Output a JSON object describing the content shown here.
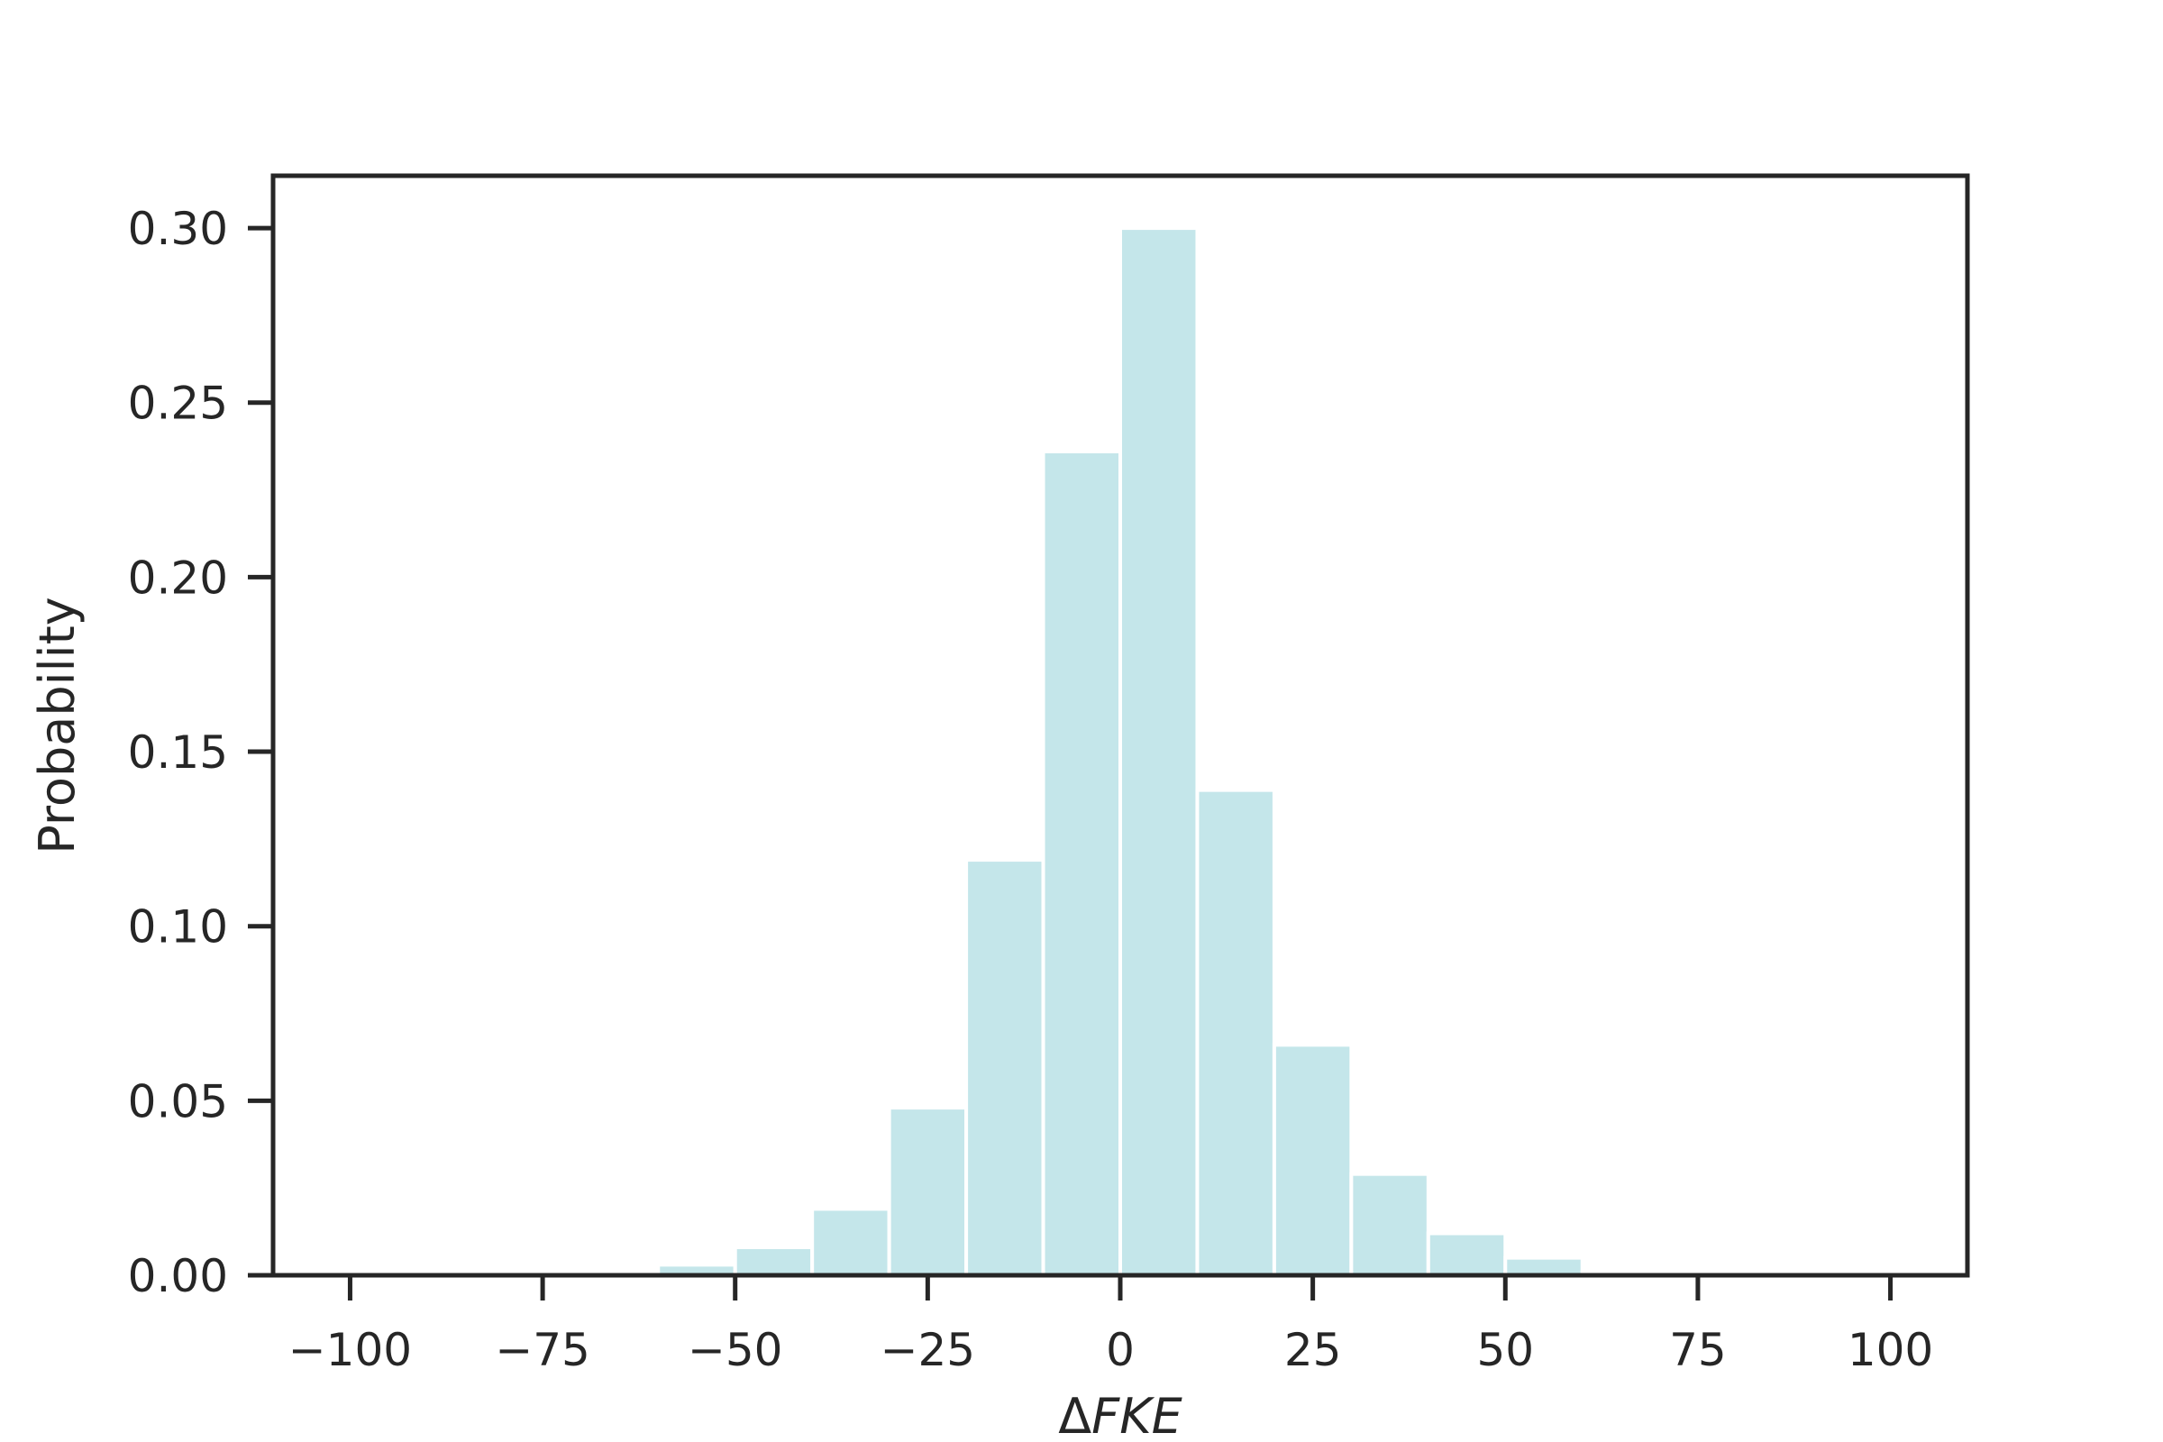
{
  "chart_data": {
    "type": "bar",
    "title": "",
    "xlabel_prefix": "Δ",
    "xlabel_var": "FKE",
    "ylabel": "Probability",
    "xlim": [
      -110,
      110
    ],
    "ylim": [
      0,
      0.315
    ],
    "xticks": [
      -100,
      -75,
      -50,
      -25,
      0,
      25,
      50,
      75,
      100
    ],
    "xtick_labels": [
      "−100",
      "−75",
      "−50",
      "−25",
      "0",
      "25",
      "50",
      "75",
      "100"
    ],
    "yticks": [
      0,
      0.05,
      0.1,
      0.15,
      0.2,
      0.25,
      0.3
    ],
    "ytick_labels": [
      "0.00",
      "0.05",
      "0.10",
      "0.15",
      "0.20",
      "0.25",
      "0.30"
    ],
    "bin_width": 10,
    "bins": [
      {
        "x0": -60,
        "x1": -50,
        "value": 0.003
      },
      {
        "x0": -50,
        "x1": -40,
        "value": 0.008
      },
      {
        "x0": -40,
        "x1": -30,
        "value": 0.019
      },
      {
        "x0": -30,
        "x1": -20,
        "value": 0.048
      },
      {
        "x0": -20,
        "x1": -10,
        "value": 0.119
      },
      {
        "x0": -10,
        "x1": 0,
        "value": 0.236
      },
      {
        "x0": 0,
        "x1": 10,
        "value": 0.3
      },
      {
        "x0": 10,
        "x1": 20,
        "value": 0.139
      },
      {
        "x0": 20,
        "x1": 30,
        "value": 0.066
      },
      {
        "x0": 30,
        "x1": 40,
        "value": 0.029
      },
      {
        "x0": 40,
        "x1": 50,
        "value": 0.012
      },
      {
        "x0": 50,
        "x1": 60,
        "value": 0.005
      },
      {
        "x0": 60,
        "x1": 70,
        "value": 0.001
      }
    ],
    "grid": false,
    "colors": {
      "bar": "#c4e6ea",
      "bar_edge": "#ffffff",
      "axis": "#262626"
    }
  }
}
